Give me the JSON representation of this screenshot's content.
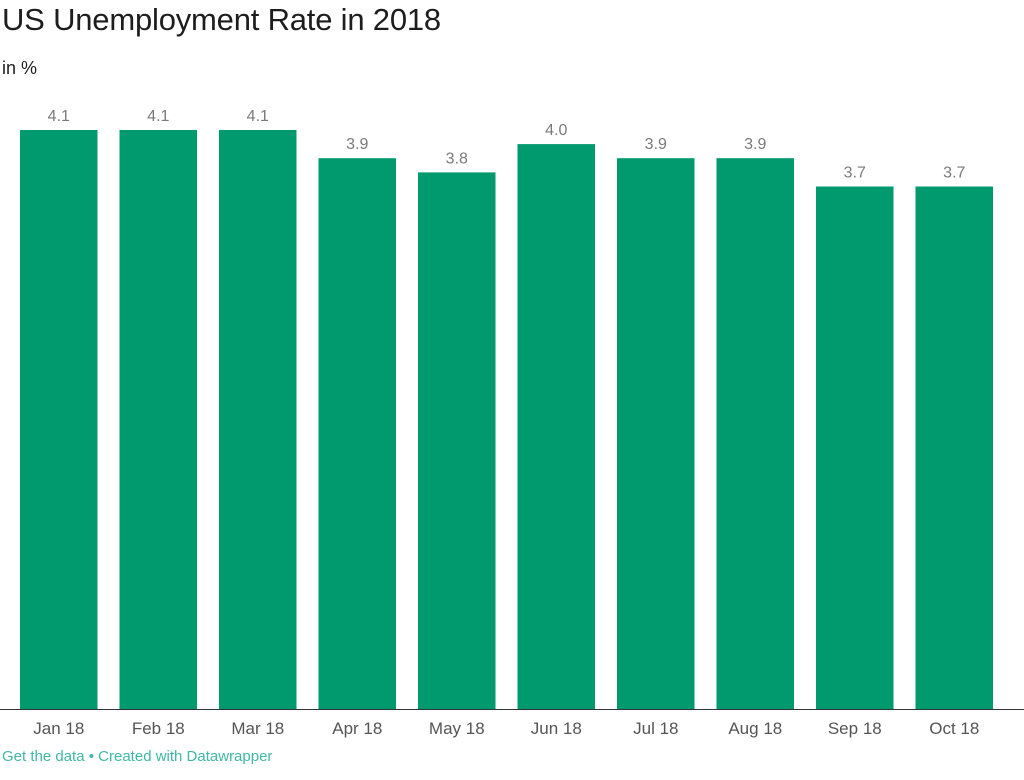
{
  "chart_data": {
    "type": "bar",
    "title": "US Unemployment Rate in 2018",
    "subtitle": "in %",
    "categories": [
      "Jan 18",
      "Feb 18",
      "Mar 18",
      "Apr 18",
      "May 18",
      "Jun 18",
      "Jul 18",
      "Aug 18",
      "Sep 18",
      "Oct 18"
    ],
    "values": [
      4.1,
      4.1,
      4.1,
      3.9,
      3.8,
      4.0,
      3.9,
      3.9,
      3.7,
      3.7
    ],
    "value_labels": [
      "4.1",
      "4.1",
      "4.1",
      "3.9",
      "3.8",
      "4.0",
      "3.9",
      "3.9",
      "3.7",
      "3.7"
    ],
    "ylim": [
      0,
      4.1
    ],
    "grid": false,
    "bar_color": "#009a6e"
  },
  "footer": {
    "get_data": "Get the data",
    "separator": "•",
    "created_with": "Created with Datawrapper"
  }
}
